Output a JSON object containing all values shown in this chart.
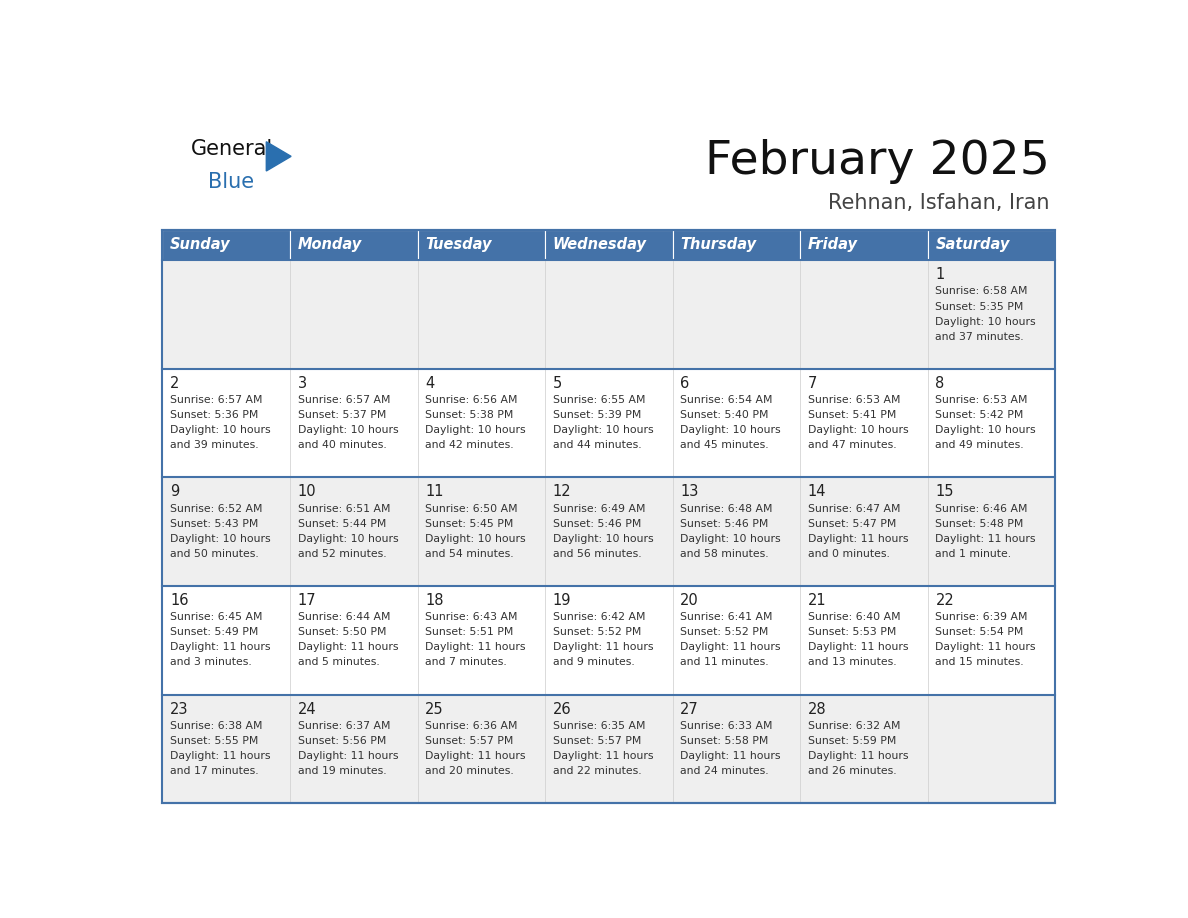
{
  "title": "February 2025",
  "subtitle": "Rehnan, Isfahan, Iran",
  "days_of_week": [
    "Sunday",
    "Monday",
    "Tuesday",
    "Wednesday",
    "Thursday",
    "Friday",
    "Saturday"
  ],
  "header_bg": "#4472a8",
  "header_text": "#ffffff",
  "row_bg_light": "#efefef",
  "row_bg_white": "#ffffff",
  "cell_border_light": "#cccccc",
  "row_separator": "#4472a8",
  "day_number_color": "#222222",
  "text_color": "#333333",
  "title_color": "#111111",
  "subtitle_color": "#444444",
  "logo_general_color": "#111111",
  "logo_blue_color": "#2a6faf",
  "calendar_data": [
    [
      {
        "day": null
      },
      {
        "day": null
      },
      {
        "day": null
      },
      {
        "day": null
      },
      {
        "day": null
      },
      {
        "day": null
      },
      {
        "day": 1,
        "sunrise": "6:58 AM",
        "sunset": "5:35 PM",
        "daylight": "10 hours and 37 minutes."
      }
    ],
    [
      {
        "day": 2,
        "sunrise": "6:57 AM",
        "sunset": "5:36 PM",
        "daylight": "10 hours and 39 minutes."
      },
      {
        "day": 3,
        "sunrise": "6:57 AM",
        "sunset": "5:37 PM",
        "daylight": "10 hours and 40 minutes."
      },
      {
        "day": 4,
        "sunrise": "6:56 AM",
        "sunset": "5:38 PM",
        "daylight": "10 hours and 42 minutes."
      },
      {
        "day": 5,
        "sunrise": "6:55 AM",
        "sunset": "5:39 PM",
        "daylight": "10 hours and 44 minutes."
      },
      {
        "day": 6,
        "sunrise": "6:54 AM",
        "sunset": "5:40 PM",
        "daylight": "10 hours and 45 minutes."
      },
      {
        "day": 7,
        "sunrise": "6:53 AM",
        "sunset": "5:41 PM",
        "daylight": "10 hours and 47 minutes."
      },
      {
        "day": 8,
        "sunrise": "6:53 AM",
        "sunset": "5:42 PM",
        "daylight": "10 hours and 49 minutes."
      }
    ],
    [
      {
        "day": 9,
        "sunrise": "6:52 AM",
        "sunset": "5:43 PM",
        "daylight": "10 hours and 50 minutes."
      },
      {
        "day": 10,
        "sunrise": "6:51 AM",
        "sunset": "5:44 PM",
        "daylight": "10 hours and 52 minutes."
      },
      {
        "day": 11,
        "sunrise": "6:50 AM",
        "sunset": "5:45 PM",
        "daylight": "10 hours and 54 minutes."
      },
      {
        "day": 12,
        "sunrise": "6:49 AM",
        "sunset": "5:46 PM",
        "daylight": "10 hours and 56 minutes."
      },
      {
        "day": 13,
        "sunrise": "6:48 AM",
        "sunset": "5:46 PM",
        "daylight": "10 hours and 58 minutes."
      },
      {
        "day": 14,
        "sunrise": "6:47 AM",
        "sunset": "5:47 PM",
        "daylight": "11 hours and 0 minutes."
      },
      {
        "day": 15,
        "sunrise": "6:46 AM",
        "sunset": "5:48 PM",
        "daylight": "11 hours and 1 minute."
      }
    ],
    [
      {
        "day": 16,
        "sunrise": "6:45 AM",
        "sunset": "5:49 PM",
        "daylight": "11 hours and 3 minutes."
      },
      {
        "day": 17,
        "sunrise": "6:44 AM",
        "sunset": "5:50 PM",
        "daylight": "11 hours and 5 minutes."
      },
      {
        "day": 18,
        "sunrise": "6:43 AM",
        "sunset": "5:51 PM",
        "daylight": "11 hours and 7 minutes."
      },
      {
        "day": 19,
        "sunrise": "6:42 AM",
        "sunset": "5:52 PM",
        "daylight": "11 hours and 9 minutes."
      },
      {
        "day": 20,
        "sunrise": "6:41 AM",
        "sunset": "5:52 PM",
        "daylight": "11 hours and 11 minutes."
      },
      {
        "day": 21,
        "sunrise": "6:40 AM",
        "sunset": "5:53 PM",
        "daylight": "11 hours and 13 minutes."
      },
      {
        "day": 22,
        "sunrise": "6:39 AM",
        "sunset": "5:54 PM",
        "daylight": "11 hours and 15 minutes."
      }
    ],
    [
      {
        "day": 23,
        "sunrise": "6:38 AM",
        "sunset": "5:55 PM",
        "daylight": "11 hours and 17 minutes."
      },
      {
        "day": 24,
        "sunrise": "6:37 AM",
        "sunset": "5:56 PM",
        "daylight": "11 hours and 19 minutes."
      },
      {
        "day": 25,
        "sunrise": "6:36 AM",
        "sunset": "5:57 PM",
        "daylight": "11 hours and 20 minutes."
      },
      {
        "day": 26,
        "sunrise": "6:35 AM",
        "sunset": "5:57 PM",
        "daylight": "11 hours and 22 minutes."
      },
      {
        "day": 27,
        "sunrise": "6:33 AM",
        "sunset": "5:58 PM",
        "daylight": "11 hours and 24 minutes."
      },
      {
        "day": 28,
        "sunrise": "6:32 AM",
        "sunset": "5:59 PM",
        "daylight": "11 hours and 26 minutes."
      },
      {
        "day": null
      }
    ]
  ],
  "row_colors": [
    "#efefef",
    "#ffffff",
    "#efefef",
    "#ffffff",
    "#efefef"
  ]
}
